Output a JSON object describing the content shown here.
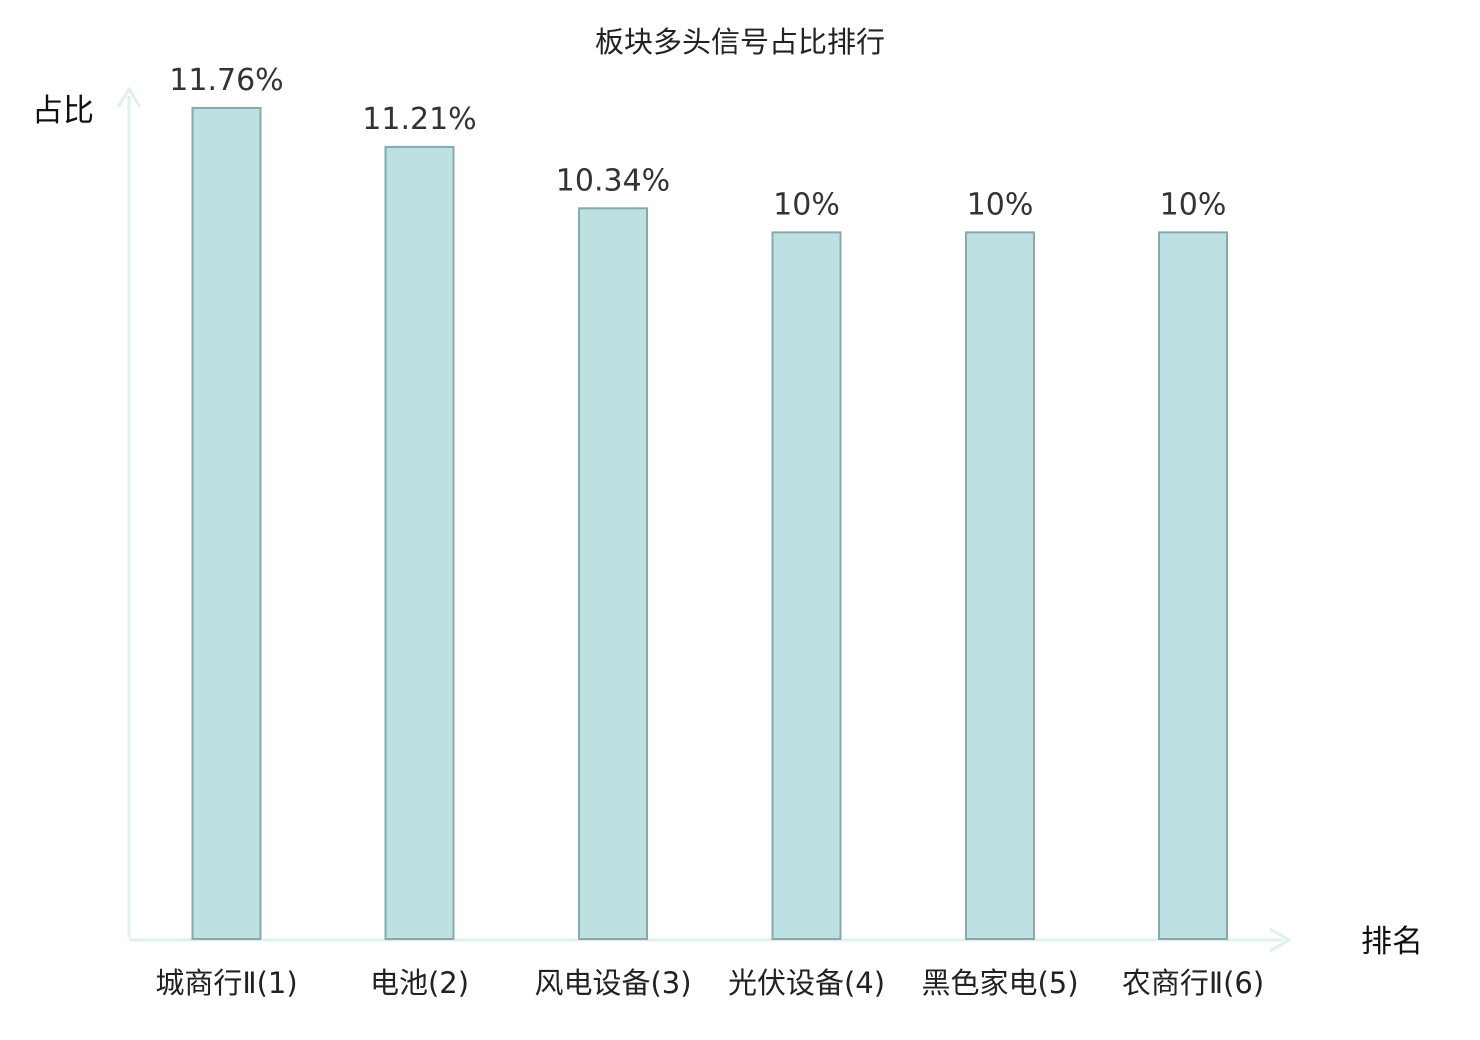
{
  "chart_data": {
    "type": "bar",
    "title": "板块多头信号占比排行",
    "xlabel": "排名",
    "ylabel": "占比",
    "categories": [
      "城商行Ⅱ(1)",
      "电池(2)",
      "风电设备(3)",
      "光伏设备(4)",
      "黑色家电(5)",
      "农商行Ⅱ(6)"
    ],
    "values": [
      11.76,
      11.21,
      10.34,
      10,
      10,
      10
    ],
    "value_labels": [
      "11.76%",
      "11.21%",
      "10.34%",
      "10%",
      "10%",
      "10%"
    ],
    "ylim": [
      0,
      12.2
    ],
    "grid": false,
    "legend": "none",
    "highlight_index": 5,
    "colors": {
      "bar_fill": "#bde0e3",
      "bar_stroke": "#8aa8ab",
      "axis": "#dff2ef",
      "tick_label": "#222222",
      "highlight_label": "#dd1111",
      "value_label": "#333333"
    }
  }
}
